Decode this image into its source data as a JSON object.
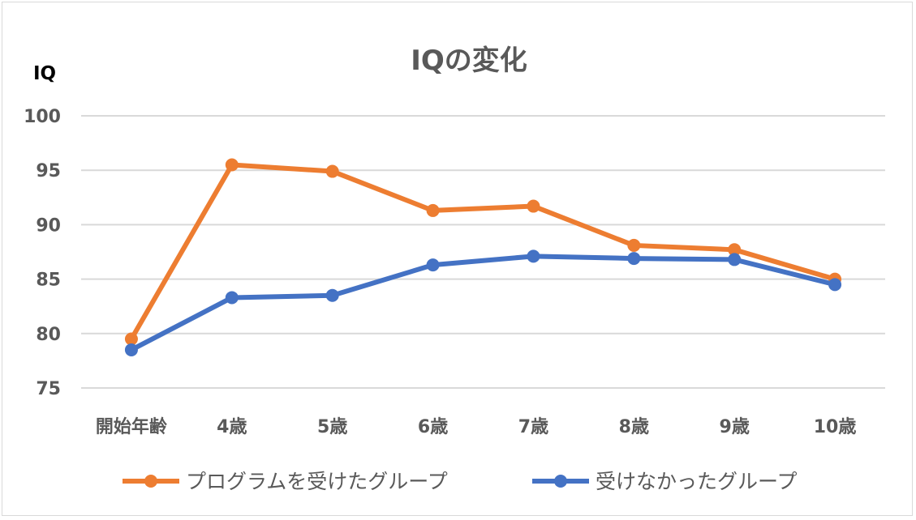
{
  "chart_data": {
    "type": "line",
    "title": "IQの変化",
    "ylabel": "IQ",
    "xlabel": "",
    "categories": [
      "開始年齢",
      "4歳",
      "5歳",
      "6歳",
      "7歳",
      "8歳",
      "9歳",
      "10歳"
    ],
    "ylim": [
      75,
      100
    ],
    "yticks": [
      75,
      80,
      85,
      90,
      95,
      100
    ],
    "grid": true,
    "legend_position": "bottom",
    "series": [
      {
        "name": "プログラムを受けたグループ",
        "color": "#ED7D31",
        "values": [
          79.5,
          95.5,
          94.9,
          91.3,
          91.7,
          88.1,
          87.7,
          85.0
        ]
      },
      {
        "name": "受けなかったグループ",
        "color": "#4472C4",
        "values": [
          78.5,
          83.3,
          83.5,
          86.3,
          87.1,
          86.9,
          86.8,
          84.5
        ]
      }
    ]
  }
}
